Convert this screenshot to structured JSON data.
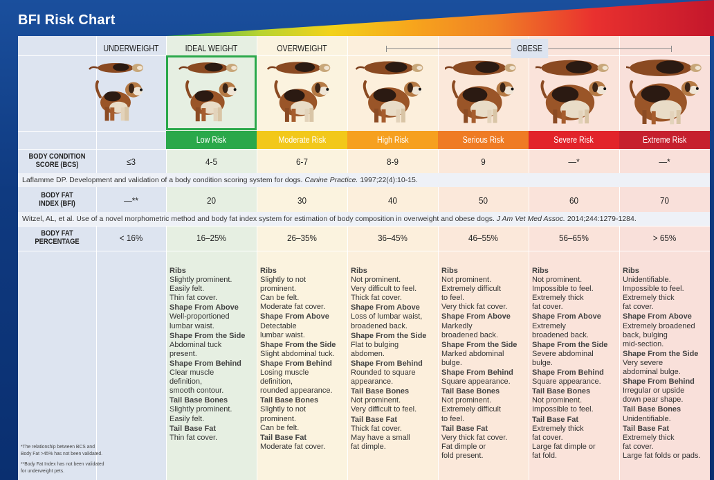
{
  "title": "BFI Risk Chart",
  "colors": {
    "ideal": "#2aa84a",
    "moderate": "#f2c81a",
    "high": "#f6a01f",
    "serious": "#ef7b24",
    "severe": "#e2232a",
    "extreme": "#c6202e"
  },
  "headers": {
    "underweight": "UNDERWEIGHT",
    "ideal": "IDEAL WEIGHT",
    "overweight": "OVERWEIGHT",
    "obese": "OBESE"
  },
  "risk_levels": [
    "Low Risk",
    "Moderate Risk",
    "High Risk",
    "Serious Risk",
    "Severe Risk",
    "Extreme Risk"
  ],
  "rows": {
    "bcs": {
      "label_line1": "BODY CONDITION",
      "label_line2": "SCORE (BCS)",
      "values": [
        "≤3",
        "4-5",
        "6-7",
        "8-9",
        "9",
        "—*",
        "—*"
      ],
      "citation_plain": "Laflamme DP. Development and validation of a body condition scoring system for dogs. ",
      "citation_journal": "Canine Practice.",
      "citation_rest": " 1997;22(4):10-15."
    },
    "bfi": {
      "label_line1": "BODY FAT",
      "label_line2": "INDEX (BFI)",
      "values": [
        "—**",
        "20",
        "30",
        "40",
        "50",
        "60",
        "70"
      ],
      "citation_plain": "Witzel, AL, et al. Use of a novel morphometric method and body fat index system for estimation of body composition in overweight and obese dogs. ",
      "citation_journal": "J Am Vet Med Assoc.",
      "citation_rest": " 2014;244:1279-1284."
    },
    "bfp": {
      "label_line1": "BODY FAT",
      "label_line2": "PERCENTAGE",
      "values": [
        "< 16%",
        "16–25%",
        "26–35%",
        "36–45%",
        "46–55%",
        "56–65%",
        "> 65%"
      ]
    }
  },
  "descriptions": [
    [
      {
        "h": "Ribs",
        "t": "Slightly prominent.\nEasily felt.\nThin fat cover."
      },
      {
        "h": "Shape From Above",
        "t": "Well-proportioned\nlumbar waist."
      },
      {
        "h": "Shape From the Side",
        "t": "Abdominal tuck\npresent."
      },
      {
        "h": "Shape From Behind",
        "t": "Clear muscle\ndefinition,\nsmooth contour."
      },
      {
        "h": "Tail Base Bones",
        "t": "Slightly prominent.\nEasily felt."
      },
      {
        "h": "Tail Base Fat",
        "t": "Thin fat cover."
      }
    ],
    [
      {
        "h": "Ribs",
        "t": "Slightly to not\nprominent.\nCan be felt.\nModerate fat cover."
      },
      {
        "h": "Shape From Above",
        "t": "Detectable\nlumbar waist."
      },
      {
        "h": "Shape From the Side",
        "t": "Slight abdominal tuck."
      },
      {
        "h": "Shape From Behind",
        "t": "Losing muscle\ndefinition,\nrounded appearance."
      },
      {
        "h": "Tail Base Bones",
        "t": "Slightly to not\nprominent.\nCan be felt."
      },
      {
        "h": "Tail Base Fat",
        "t": "Moderate fat cover."
      }
    ],
    [
      {
        "h": "Ribs",
        "t": "Not prominent.\nVery difficult to feel.\nThick fat cover."
      },
      {
        "h": "Shape From Above",
        "t": "Loss of lumbar waist,\nbroadened back."
      },
      {
        "h": "Shape From the Side",
        "t": "Flat to bulging\nabdomen."
      },
      {
        "h": "Shape From Behind",
        "t": "Rounded to square\nappearance."
      },
      {
        "h": "Tail Base Bones",
        "t": "Not prominent.\nVery difficult to feel."
      },
      {
        "h": "Tail Base Fat",
        "t": "Thick fat cover.\nMay have a small\nfat dimple."
      }
    ],
    [
      {
        "h": "Ribs",
        "t": "Not prominent.\nExtremely difficult\nto feel.\nVery thick fat cover."
      },
      {
        "h": "Shape From Above",
        "t": "Markedly\nbroadened back."
      },
      {
        "h": "Shape From the Side",
        "t": "Marked abdominal\nbulge."
      },
      {
        "h": "Shape From Behind",
        "t": "Square appearance."
      },
      {
        "h": "Tail Base Bones",
        "t": "Not prominent.\nExtremely difficult\nto feel."
      },
      {
        "h": "Tail Base Fat",
        "t": "Very thick fat cover.\nFat dimple or\nfold present."
      }
    ],
    [
      {
        "h": "Ribs",
        "t": "Not prominent.\nImpossible to feel.\nExtremely thick\nfat cover."
      },
      {
        "h": "Shape From Above",
        "t": "Extremely\nbroadened back."
      },
      {
        "h": "Shape From the Side",
        "t": "Severe abdominal\nbulge."
      },
      {
        "h": "Shape From Behind",
        "t": "Square appearance."
      },
      {
        "h": "Tail Base Bones",
        "t": "Not prominent.\nImpossible to feel."
      },
      {
        "h": "Tail Base Fat",
        "t": "Extremely thick\nfat cover.\nLarge fat dimple or\nfat fold."
      }
    ],
    [
      {
        "h": "Ribs",
        "t": "Unidentifiable.\nImpossible to feel.\nExtremely thick\nfat cover."
      },
      {
        "h": "Shape From Above",
        "t": "Extremely broadened\nback, bulging\nmid-section."
      },
      {
        "h": "Shape From the Side",
        "t": "Very severe\nabdominal bulge."
      },
      {
        "h": "Shape From Behind",
        "t": "Irregular or upside\ndown pear shape."
      },
      {
        "h": "Tail Base Bones",
        "t": "Unidentifiable."
      },
      {
        "h": "Tail Base Fat",
        "t": "Extremely thick\nfat cover.\nLarge fat folds or pads."
      }
    ]
  ],
  "footnotes": {
    "f1_line1": "*The relationship between BCS and",
    "f1_line2": "Body Fat >45% has not been validated.",
    "f2_line1": "**Body Fat Index has not been validated",
    "f2_line2": "for underweight pets."
  }
}
